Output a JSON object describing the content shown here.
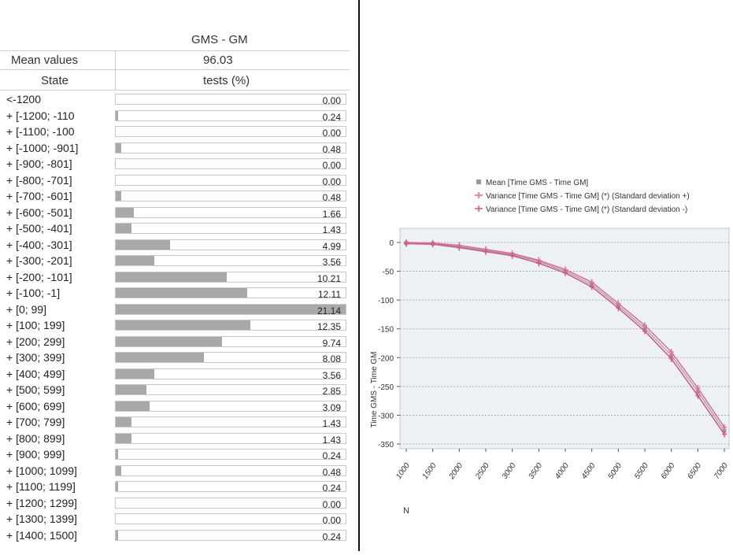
{
  "table": {
    "column_title": "GMS - GM",
    "mean_label": "Mean values",
    "mean_value": "96.03",
    "state_header": "State",
    "tests_header": "tests (%)",
    "rows": [
      {
        "label": "<-1200",
        "value": "0.00",
        "pct": 0.0
      },
      {
        "label": "+ [-1200; -110",
        "value": "0.24",
        "pct": 0.24
      },
      {
        "label": "+ [-1100; -100",
        "value": "0.00",
        "pct": 0.0
      },
      {
        "label": "+ [-1000; -901]",
        "value": "0.48",
        "pct": 0.48
      },
      {
        "label": "+ [-900; -801]",
        "value": "0.00",
        "pct": 0.0
      },
      {
        "label": "+ [-800; -701]",
        "value": "0.00",
        "pct": 0.0
      },
      {
        "label": "+ [-700; -601]",
        "value": "0.48",
        "pct": 0.48
      },
      {
        "label": "+ [-600; -501]",
        "value": "1.66",
        "pct": 1.66
      },
      {
        "label": "+ [-500; -401]",
        "value": "1.43",
        "pct": 1.43
      },
      {
        "label": "+ [-400; -301]",
        "value": "4.99",
        "pct": 4.99
      },
      {
        "label": "+ [-300; -201]",
        "value": "3.56",
        "pct": 3.56
      },
      {
        "label": "+ [-200; -101]",
        "value": "10.21",
        "pct": 10.21
      },
      {
        "label": "+ [-100; -1]",
        "value": "12.11",
        "pct": 12.11
      },
      {
        "label": "+ [0; 99]",
        "value": "21.14",
        "pct": 21.14
      },
      {
        "label": "+ [100; 199]",
        "value": "12.35",
        "pct": 12.35
      },
      {
        "label": "+ [200; 299]",
        "value": "9.74",
        "pct": 9.74
      },
      {
        "label": "+ [300; 399]",
        "value": "8.08",
        "pct": 8.08
      },
      {
        "label": "+ [400; 499]",
        "value": "3.56",
        "pct": 3.56
      },
      {
        "label": "+ [500; 599]",
        "value": "2.85",
        "pct": 2.85
      },
      {
        "label": "+ [600; 699]",
        "value": "3.09",
        "pct": 3.09
      },
      {
        "label": "+ [700; 799]",
        "value": "1.43",
        "pct": 1.43
      },
      {
        "label": "+ [800; 899]",
        "value": "1.43",
        "pct": 1.43
      },
      {
        "label": "+ [900; 999]",
        "value": "0.24",
        "pct": 0.24
      },
      {
        "label": "+ [1000; 1099]",
        "value": "0.48",
        "pct": 0.48
      },
      {
        "label": "+ [1100; 1199]",
        "value": "0.24",
        "pct": 0.24
      },
      {
        "label": "+ [1200; 1299]",
        "value": "0.00",
        "pct": 0.0
      },
      {
        "label": "+ [1300; 1399]",
        "value": "0.00",
        "pct": 0.0
      },
      {
        "label": "+ [1400; 1500]",
        "value": "0.24",
        "pct": 0.24
      }
    ]
  },
  "chart_data": [
    {
      "type": "bar",
      "orientation": "horizontal",
      "title": "GMS - GM",
      "ylabel": "State",
      "xlabel": "tests (%)",
      "xlim": [
        0,
        21.14
      ],
      "categories": [
        "<-1200",
        "+ [-1200; -110",
        "+ [-1100; -100",
        "+ [-1000; -901]",
        "+ [-900; -801]",
        "+ [-800; -701]",
        "+ [-700; -601]",
        "+ [-600; -501]",
        "+ [-500; -401]",
        "+ [-400; -301]",
        "+ [-300; -201]",
        "+ [-200; -101]",
        "+ [-100; -1]",
        "+ [0; 99]",
        "+ [100; 199]",
        "+ [200; 299]",
        "+ [300; 399]",
        "+ [400; 499]",
        "+ [500; 599]",
        "+ [600; 699]",
        "+ [700; 799]",
        "+ [800; 899]",
        "+ [900; 999]",
        "+ [1000; 1099]",
        "+ [1100; 1199]",
        "+ [1200; 1299]",
        "+ [1300; 1399]",
        "+ [1400; 1500]"
      ],
      "values": [
        0.0,
        0.24,
        0.0,
        0.48,
        0.0,
        0.0,
        0.48,
        1.66,
        1.43,
        4.99,
        3.56,
        10.21,
        12.11,
        21.14,
        12.35,
        9.74,
        8.08,
        3.56,
        2.85,
        3.09,
        1.43,
        1.43,
        0.24,
        0.48,
        0.24,
        0.0,
        0.0,
        0.24
      ]
    },
    {
      "type": "line",
      "xlabel": "N",
      "ylabel": "Time GMS - Time GM",
      "ylim": [
        -350,
        0
      ],
      "yticks": [
        0,
        -50,
        -100,
        -150,
        -200,
        -250,
        -300,
        -350
      ],
      "x": [
        1000,
        1500,
        2000,
        2500,
        3000,
        3500,
        4000,
        4500,
        5000,
        5500,
        6000,
        6500,
        7000
      ],
      "grid": true,
      "legend_position": "top",
      "series": [
        {
          "name": "Mean [Time GMS - Time GM]",
          "color": "#9a9a9a",
          "values": [
            -1,
            -2,
            -7,
            -14,
            -21,
            -33,
            -50,
            -73,
            -110,
            -149,
            -196,
            -259,
            -327
          ]
        },
        {
          "name": "Variance [Time GMS - Time GM] (*) (Standard deviation +)",
          "color": "#e0709a",
          "values": [
            0,
            -1,
            -5,
            -12,
            -19,
            -31,
            -47,
            -69,
            -106,
            -144,
            -190,
            -253,
            -321
          ]
        },
        {
          "name": "Variance [Time GMS - Time GM] (*) (Standard deviation -)",
          "color": "#d05a88",
          "values": [
            -2,
            -3,
            -9,
            -16,
            -23,
            -36,
            -53,
            -77,
            -114,
            -154,
            -202,
            -266,
            -333
          ]
        }
      ]
    }
  ]
}
